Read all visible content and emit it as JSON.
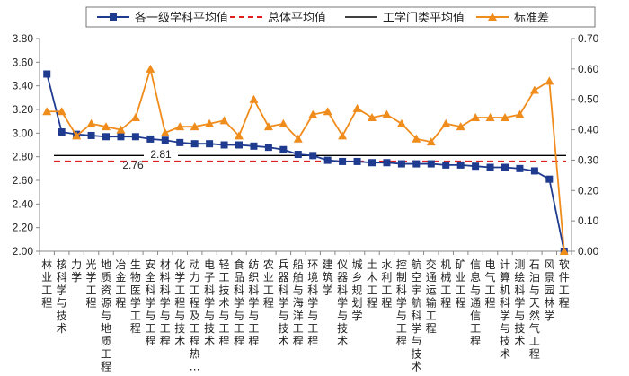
{
  "chart_data": {
    "type": "line",
    "categories": [
      "林业工程",
      "核科学与技术",
      "力学",
      "光学工程",
      "地质资源与地质工程",
      "冶金工程",
      "生物医学工程",
      "安全科学与工程",
      "材料科学与工程",
      "化学工程与技术",
      "动力工程及工程热…",
      "电子科学与技术",
      "轻工技术与工程",
      "食品科学与工程",
      "纺织科学与工程",
      "农业工程",
      "兵器科学与技术",
      "船舶与海洋工程",
      "环境科学与工程",
      "建筑学",
      "仪器科学与技术",
      "城乡规划学",
      "土木工程",
      "水利工程",
      "控制科学与工程",
      "航空宇航科学与技术",
      "交通运输工程",
      "机械工程",
      "矿业工程",
      "信息与通信工程",
      "电气工程",
      "计算机科学与技术",
      "测绘科学与技术",
      "石油与天然气工程",
      "风景园林学",
      "软件工程"
    ],
    "series": [
      {
        "name": "各一级学科平均值",
        "axis": "left",
        "color": "#1f3b8f",
        "marker": "square",
        "values": [
          3.5,
          3.01,
          2.99,
          2.98,
          2.97,
          2.97,
          2.97,
          2.95,
          2.94,
          2.92,
          2.91,
          2.91,
          2.9,
          2.9,
          2.89,
          2.88,
          2.86,
          2.82,
          2.81,
          2.77,
          2.76,
          2.76,
          2.75,
          2.75,
          2.74,
          2.74,
          2.74,
          2.73,
          2.73,
          2.72,
          2.71,
          2.71,
          2.7,
          2.68,
          2.61,
          2.0
        ]
      },
      {
        "name": "标准差",
        "axis": "right",
        "color": "#f08c1c",
        "marker": "triangle",
        "values": [
          0.46,
          0.46,
          0.38,
          0.42,
          0.41,
          0.4,
          0.44,
          0.6,
          0.39,
          0.41,
          0.41,
          0.42,
          0.43,
          0.38,
          0.5,
          0.41,
          0.42,
          0.37,
          0.45,
          0.46,
          0.38,
          0.47,
          0.44,
          0.45,
          0.42,
          0.37,
          0.36,
          0.42,
          0.41,
          0.44,
          0.44,
          0.44,
          0.45,
          0.53,
          0.56,
          0.0
        ]
      }
    ],
    "reference_lines": [
      {
        "name": "总体平均值",
        "value": 2.76,
        "label": "2.76",
        "color": "#e02020",
        "style": "dashed"
      },
      {
        "name": "工学门类平均值",
        "value": 2.81,
        "label": "2.81",
        "color": "#000000",
        "style": "solid"
      }
    ],
    "legend_items": [
      "各一级学科平均值",
      "总体平均值",
      "工学门类平均值",
      "标准差"
    ],
    "y_left": {
      "min": 2.0,
      "max": 3.8,
      "step": 0.2,
      "ticks": [
        "2.00",
        "2.20",
        "2.40",
        "2.60",
        "2.80",
        "3.00",
        "3.20",
        "3.40",
        "3.60",
        "3.80"
      ]
    },
    "y_right": {
      "min": 0.0,
      "max": 0.7,
      "step": 0.1,
      "ticks": [
        "0.00",
        "0.10",
        "0.20",
        "0.30",
        "0.40",
        "0.50",
        "0.60",
        "0.70"
      ]
    },
    "legend_position": "top"
  }
}
